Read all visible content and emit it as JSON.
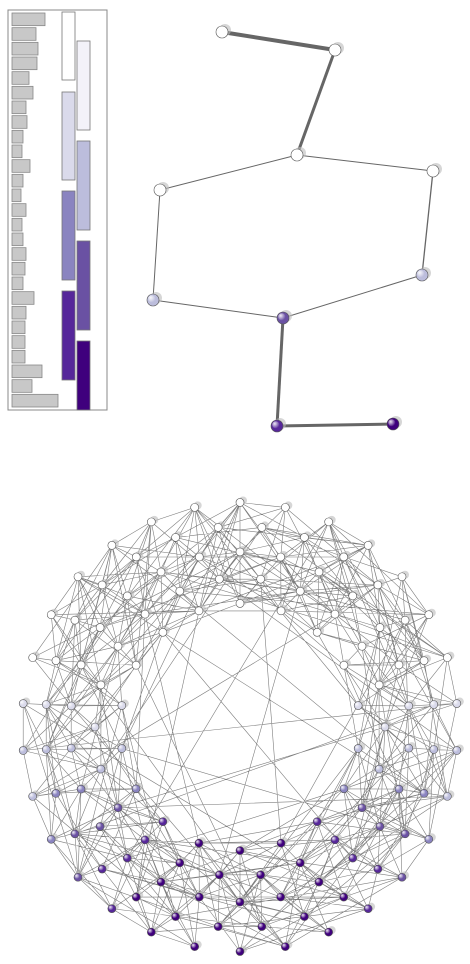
{
  "histogram": {
    "values": [
      33,
      24,
      26,
      25,
      17,
      21,
      14,
      15,
      11,
      10,
      18,
      11,
      9,
      14,
      10,
      11,
      14,
      13,
      11,
      22,
      14,
      13,
      13,
      13,
      30,
      20,
      46
    ],
    "color": "#c8c8c8"
  }
}
